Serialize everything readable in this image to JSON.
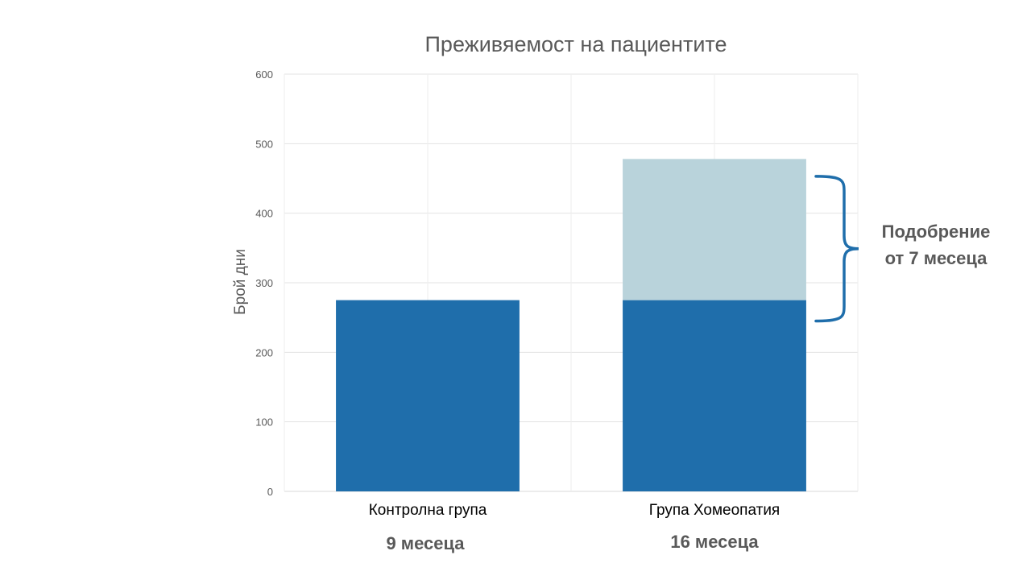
{
  "chart_data": {
    "type": "bar",
    "stacked": true,
    "title": "Преживяемост на пациентите",
    "xlabel": "",
    "ylabel": "Брой дни",
    "ylim": [
      0,
      600
    ],
    "yticks": [
      0,
      100,
      200,
      300,
      400,
      500,
      600
    ],
    "grid": true,
    "categories": [
      "Контролна група",
      "Група Хомеопатия"
    ],
    "series": [
      {
        "values": [
          275,
          275
        ],
        "color": "#1f6eab"
      },
      {
        "values": [
          0,
          203
        ],
        "color": "#b9d3db"
      }
    ],
    "category_sublabels": [
      "9 месеца",
      "16 месеца"
    ],
    "annotation": {
      "lines": [
        "Подобрение",
        "от 7 месеца"
      ],
      "range": [
        245,
        453
      ],
      "bracket_color": "#1f6eab"
    }
  }
}
